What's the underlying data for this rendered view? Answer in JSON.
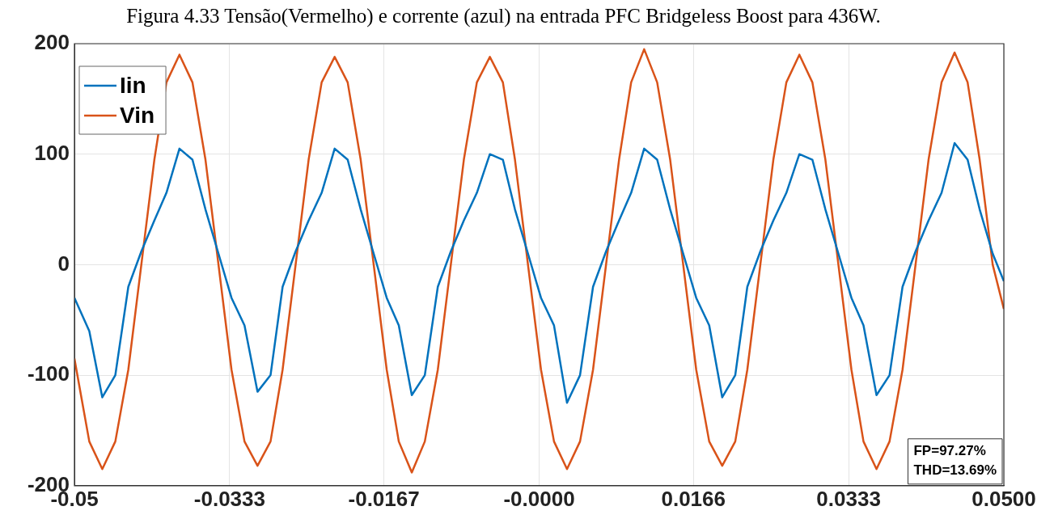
{
  "chart_data": {
    "type": "line",
    "title": "Figura 4.33 Tensão(Vermelho) e corrente (azul) na entrada PFC Bridgeless Boost para 436W.",
    "x": [
      -0.05,
      -0.0484,
      -0.047,
      -0.0456,
      -0.0442,
      -0.0428,
      -0.0414,
      -0.0401,
      -0.0387,
      -0.0373,
      -0.0359,
      -0.0345,
      -0.0331,
      -0.0317,
      -0.0303,
      -0.0289,
      -0.0276,
      -0.0262,
      -0.0248,
      -0.0234,
      -0.022,
      -0.0206,
      -0.0192,
      -0.0178,
      -0.0164,
      -0.0151,
      -0.0137,
      -0.0123,
      -0.0109,
      -0.0095,
      -0.0081,
      -0.0067,
      -0.0053,
      -0.0039,
      -0.0026,
      -0.0012,
      0.0002,
      0.0016,
      0.003,
      0.0044,
      0.0058,
      0.0072,
      0.0086,
      0.0099,
      0.0113,
      0.0127,
      0.0141,
      0.0155,
      0.0169,
      0.0183,
      0.0197,
      0.0211,
      0.0224,
      0.0238,
      0.0252,
      0.0266,
      0.028,
      0.0294,
      0.0308,
      0.0322,
      0.0336,
      0.0349,
      0.0363,
      0.0377,
      0.0391,
      0.0405,
      0.0419,
      0.0433,
      0.0447,
      0.0461,
      0.0474,
      0.0488,
      0.05
    ],
    "series": [
      {
        "name": "Iin",
        "color": "#0072bd",
        "values": [
          -30,
          -60,
          -120,
          -100,
          -20,
          12,
          40,
          65,
          105,
          95,
          50,
          10,
          -30,
          -55,
          -115,
          -100,
          -20,
          12,
          40,
          65,
          105,
          95,
          50,
          10,
          -30,
          -55,
          -118,
          -100,
          -20,
          12,
          40,
          65,
          100,
          95,
          50,
          10,
          -30,
          -55,
          -125,
          -100,
          -20,
          12,
          40,
          65,
          105,
          95,
          50,
          10,
          -30,
          -55,
          -120,
          -100,
          -20,
          12,
          40,
          65,
          100,
          95,
          50,
          10,
          -30,
          -55,
          -118,
          -100,
          -20,
          12,
          40,
          65,
          110,
          95,
          50,
          10,
          -15
        ]
      },
      {
        "name": "Vin",
        "color": "#d95319",
        "values": [
          -85,
          -160,
          -185,
          -160,
          -95,
          0,
          95,
          165,
          190,
          165,
          95,
          0,
          -95,
          -160,
          -182,
          -160,
          -95,
          0,
          95,
          165,
          188,
          165,
          95,
          0,
          -95,
          -160,
          -188,
          -160,
          -95,
          0,
          95,
          165,
          188,
          165,
          95,
          0,
          -95,
          -160,
          -185,
          -160,
          -95,
          0,
          95,
          165,
          195,
          165,
          95,
          0,
          -95,
          -160,
          -182,
          -160,
          -95,
          0,
          95,
          165,
          190,
          165,
          95,
          0,
          -95,
          -160,
          -185,
          -160,
          -95,
          0,
          95,
          165,
          192,
          165,
          95,
          0,
          -40
        ]
      }
    ],
    "xlim": [
      -0.05,
      0.05
    ],
    "xticks": [
      -0.05,
      {
        "value": -0.0333,
        "label": "-0.0333"
      },
      {
        "value": -0.0167,
        "label": "-0.0167"
      },
      {
        "value": 0,
        "label": "-0.0000"
      },
      {
        "value": 0.0166,
        "label": "0.0166"
      },
      {
        "value": 0.0333,
        "label": "0.0333"
      },
      {
        "value": 0.05,
        "label": "0.0500"
      }
    ],
    "ylim": [
      -200,
      200
    ],
    "yticks": [
      -200,
      -100,
      0,
      100,
      200
    ],
    "grid": true,
    "legend": "top left",
    "marker": "none",
    "line_style": "solid",
    "annotations": [
      "FP=97.27%",
      "THD=13.69%"
    ]
  }
}
